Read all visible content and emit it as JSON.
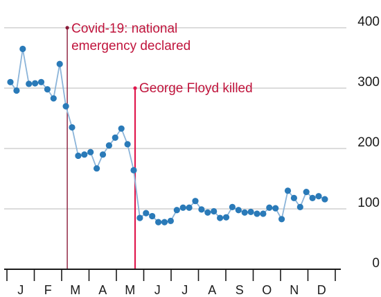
{
  "chart_data": {
    "type": "line",
    "title": "",
    "xlabel": "",
    "ylabel": "",
    "x_ticks": [
      "J",
      "F",
      "M",
      "A",
      "M",
      "J",
      "J",
      "A",
      "S",
      "O",
      "N",
      "D"
    ],
    "y_ticks": [
      "0",
      "100",
      "200",
      "300",
      "400"
    ],
    "ylim": [
      0,
      400
    ],
    "y_axis_side": "right",
    "grid": true,
    "series": [
      {
        "week": [
          1,
          2,
          3,
          4,
          5,
          6,
          7,
          8,
          9,
          10,
          11,
          12,
          13,
          14,
          15,
          16,
          17,
          18,
          19,
          20,
          21,
          22,
          23,
          24,
          25,
          26,
          27,
          28,
          29,
          30,
          31,
          32,
          33,
          34,
          35,
          36,
          37,
          38,
          39,
          40,
          41,
          42,
          43,
          44,
          45,
          46,
          47,
          48,
          49,
          50,
          51,
          52
        ],
        "values": [
          310,
          296,
          365,
          307,
          308,
          310,
          298,
          283,
          340,
          270,
          235,
          188,
          190,
          194,
          167,
          190,
          205,
          218,
          233,
          207,
          164,
          85,
          93,
          88,
          78,
          78,
          80,
          98,
          102,
          102,
          113,
          99,
          94,
          96,
          85,
          86,
          103,
          98,
          94,
          95,
          92,
          92,
          102,
          101,
          83,
          130,
          118,
          103,
          128,
          118,
          121,
          116
        ],
        "color": "#1f6fa8"
      }
    ],
    "annotations": [
      {
        "text_lines": [
          "Covid-19: national",
          "emergency declared"
        ],
        "week": 10,
        "top_value": 400,
        "color": "#8a1a38"
      },
      {
        "text_lines": [
          "George Floyd killed"
        ],
        "week": 21,
        "top_value": 300,
        "color": "#e0194e"
      }
    ],
    "colors": {
      "series": "#2a7ab8",
      "series_line": "#8bb4d9",
      "grid": "#d0d0d0",
      "axis": "#1a1a1a"
    }
  }
}
